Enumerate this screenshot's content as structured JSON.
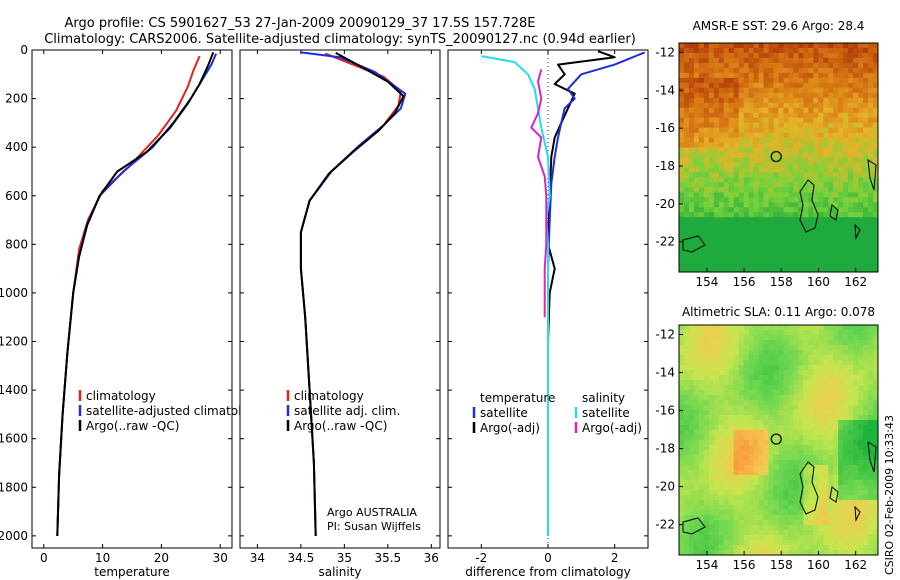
{
  "header": {
    "line1": "Argo profile: CS 5901627_53 27-Jan-2009 20090129_37 17.5S 157.728E",
    "line2": "Climatology: CARS2006. Satellite-adjusted climatology: synTS_20090127.nc (0.94d earlier)"
  },
  "side_label": "CSIRO 02-Feb-2009 10:33:43",
  "colors": {
    "red": "#e8201a",
    "blue": "#1a2ee0",
    "black": "#000000",
    "cyan": "#22e0e8",
    "magenta": "#e020c8"
  },
  "chart_data": [
    {
      "type": "line",
      "xlabel": "temperature",
      "ylabel": "",
      "xlim": [
        -2,
        32
      ],
      "ylim": [
        2050,
        0
      ],
      "xticks": [
        0,
        10,
        20,
        30
      ],
      "yticks": [
        0,
        200,
        400,
        600,
        800,
        1000,
        1200,
        1400,
        1600,
        1800,
        2000
      ],
      "legend": {
        "position": "bottom-right",
        "entries": [
          {
            "label": "climatology",
            "color": "red"
          },
          {
            "label": "satellite-adjusted climatology",
            "color": "blue"
          },
          {
            "label": "Argo(..raw -QC)",
            "color": "black"
          }
        ]
      },
      "series": [
        {
          "color": "red",
          "points": [
            [
              26.5,
              25
            ],
            [
              25.5,
              80
            ],
            [
              24.5,
              150
            ],
            [
              22.5,
              250
            ],
            [
              19.5,
              350
            ],
            [
              14.5,
              480
            ],
            [
              10,
              580
            ],
            [
              7.5,
              700
            ],
            [
              6,
              820
            ],
            [
              5,
              1000
            ],
            [
              4,
              1250
            ],
            [
              3.2,
              1500
            ],
            [
              2.6,
              1750
            ],
            [
              2.3,
              2000
            ]
          ]
        },
        {
          "color": "blue",
          "points": [
            [
              29.3,
              15
            ],
            [
              28.5,
              60
            ],
            [
              27,
              120
            ],
            [
              25,
              200
            ],
            [
              22,
              300
            ],
            [
              18.5,
              400
            ],
            [
              13.5,
              500
            ],
            [
              9.5,
              600
            ],
            [
              7.3,
              720
            ],
            [
              6,
              850
            ],
            [
              5,
              1000
            ],
            [
              4,
              1250
            ],
            [
              3.2,
              1500
            ],
            [
              2.6,
              1750
            ],
            [
              2.3,
              2000
            ]
          ]
        },
        {
          "color": "black",
          "points": [
            [
              28.8,
              10
            ],
            [
              28,
              60
            ],
            [
              26.5,
              140
            ],
            [
              24.5,
              220
            ],
            [
              21.5,
              320
            ],
            [
              17.5,
              420
            ],
            [
              12.5,
              500
            ],
            [
              9.5,
              600
            ],
            [
              7.4,
              720
            ],
            [
              6,
              850
            ],
            [
              5,
              1000
            ],
            [
              4,
              1250
            ],
            [
              3.2,
              1500
            ],
            [
              2.6,
              1750
            ],
            [
              2.3,
              2000
            ]
          ]
        }
      ]
    },
    {
      "type": "line",
      "xlabel": "salinity",
      "xlim": [
        33.8,
        36.1
      ],
      "ylim": [
        2050,
        0
      ],
      "xticks": [
        34,
        34.5,
        35,
        35.5,
        36
      ],
      "yticks": [
        0,
        200,
        400,
        600,
        800,
        1000,
        1200,
        1400,
        1600,
        1800,
        2000
      ],
      "legend": {
        "position": "bottom-right",
        "entries": [
          {
            "label": "climatology",
            "color": "red"
          },
          {
            "label": "satellite adj. clim.",
            "color": "blue"
          },
          {
            "label": "Argo(..raw -QC)",
            "color": "black"
          }
        ]
      },
      "annotation": [
        "Argo AUSTRALIA",
        "PI: Susan Wijffels"
      ],
      "series": [
        {
          "color": "red",
          "points": [
            [
              34.78,
              15
            ],
            [
              35.1,
              60
            ],
            [
              35.45,
              110
            ],
            [
              35.65,
              170
            ],
            [
              35.62,
              230
            ],
            [
              35.45,
              310
            ],
            [
              35.15,
              400
            ],
            [
              34.85,
              500
            ],
            [
              34.6,
              620
            ],
            [
              34.5,
              750
            ],
            [
              34.5,
              900
            ],
            [
              34.55,
              1100
            ],
            [
              34.6,
              1400
            ],
            [
              34.65,
              1700
            ],
            [
              34.67,
              2000
            ]
          ]
        },
        {
          "color": "blue",
          "points": [
            [
              34.5,
              10
            ],
            [
              34.95,
              30
            ],
            [
              35.35,
              90
            ],
            [
              35.7,
              180
            ],
            [
              35.65,
              240
            ],
            [
              35.45,
              310
            ],
            [
              35.15,
              400
            ],
            [
              34.85,
              500
            ],
            [
              34.6,
              620
            ],
            [
              34.5,
              750
            ],
            [
              34.5,
              900
            ],
            [
              34.55,
              1100
            ],
            [
              34.6,
              1400
            ],
            [
              34.65,
              1700
            ],
            [
              34.67,
              2000
            ]
          ]
        },
        {
          "color": "black",
          "points": [
            [
              34.9,
              12
            ],
            [
              35.2,
              70
            ],
            [
              35.5,
              130
            ],
            [
              35.68,
              190
            ],
            [
              35.58,
              260
            ],
            [
              35.4,
              330
            ],
            [
              35.1,
              420
            ],
            [
              34.82,
              510
            ],
            [
              34.6,
              620
            ],
            [
              34.5,
              750
            ],
            [
              34.5,
              900
            ],
            [
              34.55,
              1100
            ],
            [
              34.6,
              1400
            ],
            [
              34.65,
              1700
            ],
            [
              34.67,
              2000
            ]
          ]
        }
      ]
    },
    {
      "type": "line",
      "xlabel": "difference from climatology",
      "xlim": [
        -3,
        3
      ],
      "ylim": [
        2050,
        0
      ],
      "xticks": [
        -2,
        0,
        2
      ],
      "yticks": [
        0,
        200,
        400,
        600,
        800,
        1000,
        1200,
        1400,
        1600,
        1800,
        2000
      ],
      "legend": {
        "position": "bottom",
        "entries": [
          {
            "label": "temperature",
            "color": ""
          },
          {
            "label": "satellite",
            "color": "blue"
          },
          {
            "label": "Argo(-adj)",
            "color": "black"
          },
          {
            "label": "salinity",
            "color": ""
          },
          {
            "label": "satellite",
            "color": "cyan"
          },
          {
            "label": "Argo(-adj)",
            "color": "magenta"
          }
        ]
      },
      "series": [
        {
          "color": "black",
          "points": [
            [
              1.5,
              5
            ],
            [
              2.0,
              30
            ],
            [
              0.3,
              60
            ],
            [
              0.5,
              100
            ],
            [
              0.2,
              140
            ],
            [
              0.8,
              180
            ],
            [
              0.6,
              240
            ],
            [
              0.4,
              300
            ],
            [
              0.2,
              360
            ],
            [
              0.1,
              440
            ],
            [
              0.05,
              600
            ],
            [
              0.0,
              800
            ],
            [
              0.2,
              900
            ],
            [
              0.05,
              1000
            ],
            [
              0.0,
              1200
            ],
            [
              0.0,
              1500
            ],
            [
              0.0,
              1800
            ],
            [
              0.0,
              2000
            ]
          ]
        },
        {
          "color": "blue",
          "points": [
            [
              2.9,
              10
            ],
            [
              2.0,
              60
            ],
            [
              1.0,
              100
            ],
            [
              0.6,
              160
            ],
            [
              0.8,
              200
            ],
            [
              0.5,
              240
            ],
            [
              0.4,
              300
            ],
            [
              0.3,
              360
            ],
            [
              0.2,
              440
            ],
            [
              0.1,
              550
            ],
            [
              0.05,
              700
            ],
            [
              0.0,
              900
            ],
            [
              0.0,
              1200
            ],
            [
              0.0,
              1500
            ],
            [
              0.0,
              1800
            ],
            [
              0.0,
              2000
            ]
          ]
        },
        {
          "color": "cyan",
          "points": [
            [
              -2.0,
              25
            ],
            [
              -1.0,
              50
            ],
            [
              -0.6,
              100
            ],
            [
              -0.4,
              160
            ],
            [
              -0.3,
              240
            ],
            [
              -0.2,
              320
            ],
            [
              0.0,
              440
            ],
            [
              0.05,
              600
            ],
            [
              -0.05,
              700
            ],
            [
              0.0,
              800
            ],
            [
              0.0,
              1000
            ],
            [
              0.0,
              1500
            ],
            [
              0.0,
              2000
            ]
          ]
        },
        {
          "color": "magenta",
          "points": [
            [
              -0.2,
              80
            ],
            [
              -0.3,
              130
            ],
            [
              -0.2,
              200
            ],
            [
              -0.3,
              260
            ],
            [
              -0.5,
              320
            ],
            [
              -0.2,
              360
            ],
            [
              -0.3,
              440
            ],
            [
              -0.1,
              520
            ],
            [
              -0.05,
              600
            ],
            [
              -0.05,
              800
            ],
            [
              -0.1,
              900
            ],
            [
              -0.1,
              1000
            ],
            [
              -0.1,
              1100
            ]
          ]
        }
      ]
    },
    {
      "type": "heatmap",
      "title": "AMSR-E SST: 29.6 Argo: 28.4",
      "xlim": [
        152.5,
        163.2
      ],
      "ylim": [
        -23.6,
        -11.5
      ],
      "xticks": [
        154,
        156,
        158,
        160,
        162
      ],
      "yticks": [
        -12,
        -14,
        -16,
        -18,
        -20,
        -22
      ],
      "marker": {
        "x": 157.728,
        "y": -17.5,
        "label": "Argo float position"
      }
    },
    {
      "type": "heatmap",
      "title": "Altimetric SLA: 0.11 Argo: 0.078",
      "xlim": [
        152.5,
        163.2
      ],
      "ylim": [
        -23.6,
        -11.5
      ],
      "xticks": [
        154,
        156,
        158,
        160,
        162
      ],
      "yticks": [
        -12,
        -14,
        -16,
        -18,
        -20,
        -22
      ],
      "marker": {
        "x": 157.728,
        "y": -17.5,
        "label": "Argo float position"
      }
    }
  ]
}
